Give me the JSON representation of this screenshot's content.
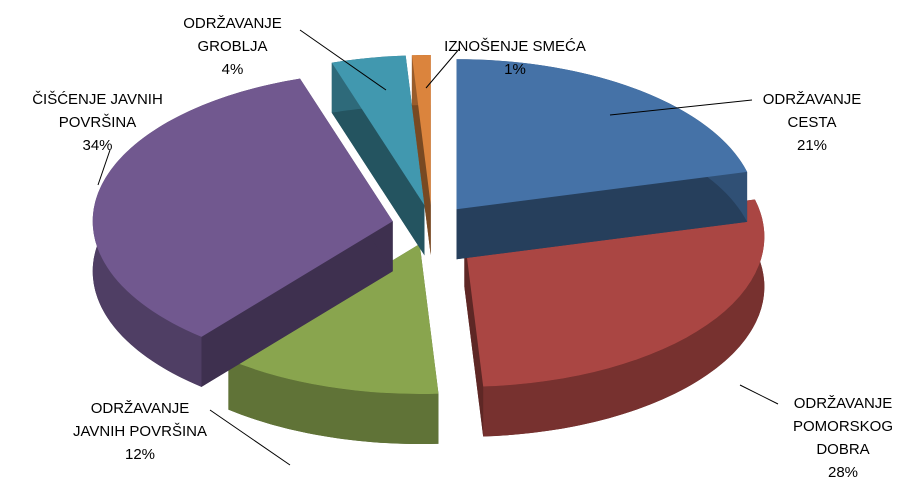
{
  "chart_data": {
    "type": "pie",
    "categories": [
      "ODRŽAVANJE CESTA",
      "ODRŽAVANJE POMORSKOG DOBRA",
      "ODRŽAVANJE JAVNIH POVRŠINA",
      "ČIŠĆENJE JAVNIH POVRŠINA",
      "ODRŽAVANJE GROBLJA",
      "IZNOŠENJE SMEĆA"
    ],
    "values": [
      21,
      28,
      12,
      34,
      4,
      1
    ],
    "value_labels": [
      "21%",
      "28%",
      "12%",
      "34%",
      "4%",
      "1%"
    ],
    "colors": [
      "#4572a7",
      "#aa4643",
      "#89a54e",
      "#71588f",
      "#4198af",
      "#db843d"
    ]
  }
}
